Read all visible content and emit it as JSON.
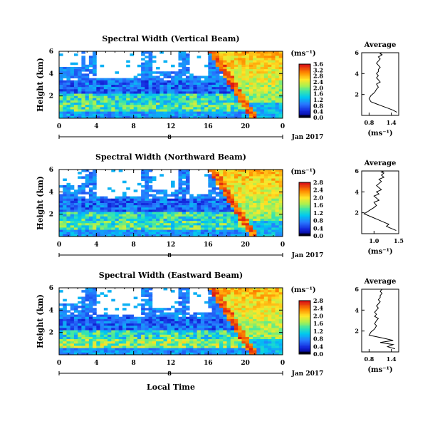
{
  "figure": {
    "date_label": "Jan 2017",
    "day_label": "8",
    "xlabel": "Local Time",
    "colorbar_unit": "(ms⁻¹)",
    "avg_title": "Average",
    "avg_unit": "(ms⁻¹)",
    "ylabel": "Height (km)"
  },
  "chart_data": [
    {
      "type": "heatmap",
      "title": "Spectral Width (Vertical Beam)",
      "ylabel": "Height (km)",
      "x_ticks": [
        "0",
        "4",
        "8",
        "12",
        "16",
        "20",
        "0"
      ],
      "y_ticks": [
        "2",
        "4",
        "6"
      ],
      "xlim": [
        0,
        24
      ],
      "ylim": [
        0,
        6
      ],
      "colorbar": {
        "ticks": [
          "0.0",
          "0.4",
          "0.8",
          "1.2",
          "1.6",
          "2.0",
          "2.4",
          "2.8",
          "3.2",
          "3.6"
        ],
        "range": [
          0,
          3.6
        ]
      },
      "profile": {
        "title": "Average",
        "xlabel": "(ms⁻¹)",
        "x_ticks": [
          "0.8",
          "1.4"
        ],
        "xlim": [
          0.6,
          1.6
        ],
        "y_ticks": [
          "2",
          "4",
          "6"
        ],
        "ylim": [
          0,
          6
        ],
        "x": [
          1.55,
          1.45,
          1.3,
          1.15,
          1.0,
          0.85,
          0.8,
          0.85,
          0.95,
          1.0,
          1.05,
          1.0,
          1.1,
          1.05,
          1.0,
          1.05,
          1.0,
          1.05,
          1.05,
          1.1,
          1.05,
          1.0,
          1.05,
          1.1,
          1.05,
          1.1,
          1.15,
          1.1,
          1.15
        ],
        "y": [
          0.3,
          0.5,
          0.7,
          0.9,
          1.1,
          1.3,
          1.6,
          1.9,
          2.2,
          2.5,
          2.7,
          3.0,
          3.2,
          3.4,
          3.6,
          3.8,
          4.0,
          4.2,
          4.4,
          4.6,
          4.8,
          5.0,
          5.2,
          5.4,
          5.6,
          5.7,
          5.8,
          5.9,
          6.0
        ]
      }
    },
    {
      "type": "heatmap",
      "title": "Spectral Width (Northward Beam)",
      "ylabel": "Height (km)",
      "x_ticks": [
        "0",
        "4",
        "8",
        "12",
        "16",
        "20",
        "0"
      ],
      "y_ticks": [
        "2",
        "4",
        "6"
      ],
      "xlim": [
        0,
        24
      ],
      "ylim": [
        0,
        6
      ],
      "colorbar": {
        "ticks": [
          "0.0",
          "0.4",
          "0.8",
          "1.2",
          "1.6",
          "2.0",
          "2.4",
          "2.8"
        ],
        "range": [
          0,
          2.8
        ]
      },
      "profile": {
        "title": "Average",
        "xlabel": "(ms⁻¹)",
        "x_ticks": [
          "1.0",
          "1.5"
        ],
        "xlim": [
          0.75,
          1.5
        ],
        "y_ticks": [
          "2",
          "4",
          "6"
        ],
        "ylim": [
          0,
          6
        ],
        "x": [
          1.45,
          1.35,
          1.25,
          1.3,
          1.2,
          1.1,
          0.95,
          0.8,
          0.9,
          1.0,
          1.05,
          1.0,
          1.1,
          1.05,
          1.0,
          1.1,
          1.05,
          1.15,
          1.1,
          1.05,
          1.1,
          1.15,
          1.1,
          1.2,
          1.15,
          1.2,
          1.15,
          1.2
        ],
        "y": [
          0.3,
          0.5,
          0.7,
          0.9,
          1.1,
          1.3,
          1.6,
          1.9,
          2.2,
          2.5,
          2.7,
          3.0,
          3.2,
          3.4,
          3.6,
          3.8,
          4.0,
          4.2,
          4.4,
          4.6,
          4.8,
          5.0,
          5.2,
          5.4,
          5.6,
          5.8,
          5.9,
          6.0
        ]
      }
    },
    {
      "type": "heatmap",
      "title": "Spectral Width (Eastward Beam)",
      "ylabel": "Height (km)",
      "x_ticks": [
        "0",
        "4",
        "8",
        "12",
        "16",
        "20",
        "0"
      ],
      "y_ticks": [
        "2",
        "4",
        "6"
      ],
      "xlim": [
        0,
        24
      ],
      "ylim": [
        0,
        6
      ],
      "colorbar": {
        "ticks": [
          "0.0",
          "0.4",
          "0.8",
          "1.2",
          "1.6",
          "2.0",
          "2.4",
          "2.8"
        ],
        "range": [
          0,
          2.8
        ]
      },
      "profile": {
        "title": "Average",
        "xlabel": "(ms⁻¹)",
        "x_ticks": [
          "0.8",
          "1.4"
        ],
        "xlim": [
          0.6,
          1.6
        ],
        "y_ticks": [
          "2",
          "4",
          "6"
        ],
        "ylim": [
          0,
          6
        ],
        "x": [
          1.5,
          1.3,
          1.45,
          1.1,
          1.45,
          1.2,
          0.8,
          0.85,
          0.95,
          1.0,
          0.95,
          1.0,
          1.05,
          0.95,
          1.0,
          0.95,
          1.0,
          1.05,
          1.0,
          1.05,
          1.1,
          1.05,
          1.1,
          1.1,
          1.15,
          1.1,
          1.15
        ],
        "y": [
          0.3,
          0.5,
          0.7,
          0.9,
          1.1,
          1.3,
          1.6,
          1.9,
          2.2,
          2.5,
          2.7,
          3.0,
          3.2,
          3.4,
          3.6,
          3.8,
          4.0,
          4.2,
          4.4,
          4.6,
          4.8,
          5.0,
          5.2,
          5.4,
          5.6,
          5.8,
          6.0
        ]
      }
    }
  ]
}
